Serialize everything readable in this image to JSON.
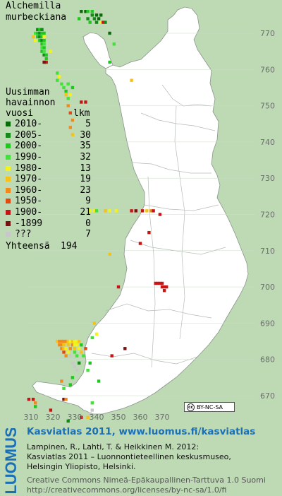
{
  "species": {
    "line1": "Alchemilla",
    "line2": "murbeckiana"
  },
  "legend": {
    "heading": [
      "Uusimman",
      "havainnon",
      "vuosi"
    ],
    "count_heading": "lkm",
    "items": [
      {
        "label": "2010-",
        "count": "5",
        "color": "#0a6b0a"
      },
      {
        "label": "2005-",
        "count": "30",
        "color": "#15881a"
      },
      {
        "label": "2000-",
        "count": "35",
        "color": "#1ec81e"
      },
      {
        "label": "1990-",
        "count": "32",
        "color": "#44e03c"
      },
      {
        "label": "1980-",
        "count": "13",
        "color": "#f2f21c"
      },
      {
        "label": "1970-",
        "count": "19",
        "color": "#f5c21a"
      },
      {
        "label": "1960-",
        "count": "23",
        "color": "#f08a1c"
      },
      {
        "label": "1950-",
        "count": "9",
        "color": "#e24a14"
      },
      {
        "label": "1900-",
        "count": "21",
        "color": "#c81414"
      },
      {
        "label": "-1899",
        "count": "0",
        "color": "#7a1010"
      },
      {
        "label": "???",
        "count": "7",
        "color": "#c8c8c8"
      }
    ],
    "total_label": "Yhteensä",
    "total_count": "194"
  },
  "axes": {
    "y_ticks": [
      "770",
      "760",
      "750",
      "740",
      "730",
      "720",
      "710",
      "700",
      "690",
      "680",
      "670"
    ],
    "x_ticks": [
      "310",
      "320",
      "330",
      "340",
      "350",
      "360",
      "370"
    ]
  },
  "license_badge": {
    "cc": "cc",
    "text": "BY-NC-SA"
  },
  "footer": {
    "logo_text": "LUOMUS",
    "heading": "Kasviatlas 2011, www.luomus.fi/kasviatlas",
    "citation": [
      "Lampinen, R., Lahti, T. & Heikkinen M. 2012:",
      "Kasviatlas 2011 – Luonnontieteellinen keskusmuseo,",
      "Helsingin Yliopisto, Helsinki."
    ],
    "license": [
      "Creative Commons Nimeä-Epäkaupallinen-Tarttuva 1.0 Suomi",
      "http://creativecommons.org/licenses/by-nc-sa/1.0/fi"
    ]
  },
  "colors": {
    "background": "#bedab5",
    "land": "#ffffff",
    "border": "#9aa49a",
    "logo": "#1a6fb5"
  },
  "map_data": {
    "grid_unit_km": 10,
    "points": [
      [
        333,
        776,
        "c0"
      ],
      [
        335,
        776,
        "c0"
      ],
      [
        340,
        775,
        "c0"
      ],
      [
        341,
        774,
        "c0"
      ],
      [
        342,
        775,
        "c0"
      ],
      [
        332,
        774,
        "c2"
      ],
      [
        336,
        776,
        "c2"
      ],
      [
        338,
        776,
        "c2"
      ],
      [
        338,
        775,
        "c1"
      ],
      [
        336,
        774,
        "c1"
      ],
      [
        339,
        774,
        "c1"
      ],
      [
        340,
        773,
        "c1"
      ],
      [
        337,
        773,
        "c2"
      ],
      [
        342,
        773,
        "c4"
      ],
      [
        343,
        773,
        "c8"
      ],
      [
        344,
        773,
        "c1"
      ],
      [
        313,
        771,
        "c1"
      ],
      [
        314,
        771,
        "c2"
      ],
      [
        315,
        771,
        "c1"
      ],
      [
        312,
        770,
        "c3"
      ],
      [
        313,
        770,
        "c2"
      ],
      [
        314,
        770,
        "c1"
      ],
      [
        315,
        770,
        "c2"
      ],
      [
        316,
        770,
        "c2"
      ],
      [
        313,
        769,
        "c2"
      ],
      [
        314,
        769,
        "c1"
      ],
      [
        315,
        769,
        "c2"
      ],
      [
        316,
        769,
        "c4"
      ],
      [
        314,
        768,
        "c2"
      ],
      [
        315,
        768,
        "c1"
      ],
      [
        316,
        768,
        "c2"
      ],
      [
        315,
        767,
        "c2"
      ],
      [
        316,
        767,
        "c3"
      ],
      [
        315,
        766,
        "c3"
      ],
      [
        316,
        766,
        "c2"
      ],
      [
        315,
        765,
        "c2"
      ],
      [
        316,
        765,
        "c3"
      ],
      [
        316,
        764,
        "c1"
      ],
      [
        317,
        764,
        "c2"
      ],
      [
        317,
        763,
        "c2"
      ],
      [
        317,
        762,
        "c8"
      ],
      [
        316,
        762,
        "c9"
      ],
      [
        311,
        769,
        "c5"
      ],
      [
        312,
        768,
        "c4"
      ],
      [
        346,
        770,
        "c0"
      ],
      [
        346,
        762,
        "c2"
      ],
      [
        348,
        767,
        "c3"
      ],
      [
        319,
        765,
        "c4"
      ],
      [
        322,
        759,
        "c3"
      ],
      [
        323,
        758,
        "c4"
      ],
      [
        322,
        757,
        "c3"
      ],
      [
        324,
        756,
        "c3"
      ],
      [
        325,
        755,
        "c3"
      ],
      [
        326,
        754,
        "c2"
      ],
      [
        326,
        753,
        "c5"
      ],
      [
        327,
        752,
        "c3"
      ],
      [
        327,
        750,
        "c6"
      ],
      [
        328,
        748,
        "c7"
      ],
      [
        329,
        746,
        "c6"
      ],
      [
        328,
        744,
        "c6"
      ],
      [
        329,
        742,
        "c5"
      ],
      [
        328,
        753,
        "c4"
      ],
      [
        333,
        751,
        "c8"
      ],
      [
        335,
        751,
        "c8"
      ],
      [
        327,
        756,
        "c3"
      ],
      [
        329,
        755,
        "c2"
      ],
      [
        356,
        757,
        "c5"
      ],
      [
        337,
        721,
        "c4"
      ],
      [
        339,
        721,
        "c4"
      ],
      [
        340,
        721,
        "c3"
      ],
      [
        344,
        721,
        "c5"
      ],
      [
        346,
        721,
        "c4"
      ],
      [
        349,
        721,
        "c4"
      ],
      [
        356,
        721,
        "c8"
      ],
      [
        358,
        721,
        "c9"
      ],
      [
        361,
        721,
        "c8"
      ],
      [
        363,
        721,
        "c5"
      ],
      [
        365,
        721,
        "c6"
      ],
      [
        366,
        721,
        "c8"
      ],
      [
        369,
        720,
        "c8"
      ],
      [
        364,
        715,
        "c8"
      ],
      [
        360,
        712,
        "c8"
      ],
      [
        346,
        709,
        "c5"
      ],
      [
        350,
        700,
        "c8"
      ],
      [
        367,
        701,
        "c8"
      ],
      [
        368,
        701,
        "c8"
      ],
      [
        369,
        701,
        "c8"
      ],
      [
        370,
        701,
        "c8"
      ],
      [
        370,
        700,
        "c8"
      ],
      [
        371,
        700,
        "c8"
      ],
      [
        372,
        700,
        "c8"
      ],
      [
        371,
        699,
        "c8"
      ],
      [
        339,
        690,
        "c5"
      ],
      [
        322,
        685,
        "c5"
      ],
      [
        323,
        685,
        "c6"
      ],
      [
        324,
        685,
        "c6"
      ],
      [
        325,
        685,
        "c6"
      ],
      [
        326,
        685,
        "c6"
      ],
      [
        327,
        685,
        "c5"
      ],
      [
        328,
        685,
        "c4"
      ],
      [
        329,
        685,
        "c5"
      ],
      [
        330,
        685,
        "c4"
      ],
      [
        331,
        685,
        "c4"
      ],
      [
        332,
        685,
        "c5"
      ],
      [
        323,
        684,
        "c6"
      ],
      [
        324,
        684,
        "c6"
      ],
      [
        325,
        684,
        "c5"
      ],
      [
        327,
        684,
        "c5"
      ],
      [
        329,
        684,
        "c6"
      ],
      [
        330,
        684,
        "c4"
      ],
      [
        331,
        684,
        "c4"
      ],
      [
        333,
        684,
        "c2"
      ],
      [
        324,
        683,
        "c6"
      ],
      [
        325,
        683,
        "c5"
      ],
      [
        326,
        683,
        "c4"
      ],
      [
        328,
        683,
        "c6"
      ],
      [
        330,
        683,
        "c5"
      ],
      [
        332,
        683,
        "c4"
      ],
      [
        325,
        682,
        "c7"
      ],
      [
        327,
        682,
        "c4"
      ],
      [
        330,
        682,
        "c3"
      ],
      [
        333,
        682,
        "c5"
      ],
      [
        326,
        681,
        "c6"
      ],
      [
        328,
        681,
        "c10"
      ],
      [
        331,
        681,
        "c3"
      ],
      [
        334,
        681,
        "c3"
      ],
      [
        335,
        683,
        "c7"
      ],
      [
        340,
        687,
        "c4"
      ],
      [
        338,
        686,
        "c3"
      ],
      [
        329,
        679,
        "c10"
      ],
      [
        330,
        678,
        "c10"
      ],
      [
        331,
        677,
        "c10"
      ],
      [
        332,
        679,
        "c1"
      ],
      [
        337,
        679,
        "c2"
      ],
      [
        336,
        677,
        "c3"
      ],
      [
        329,
        675,
        "c2"
      ],
      [
        324,
        674,
        "c6"
      ],
      [
        325,
        672,
        "c3"
      ],
      [
        328,
        673,
        "c2"
      ],
      [
        341,
        674,
        "c2"
      ],
      [
        347,
        681,
        "c8"
      ],
      [
        353,
        683,
        "c9"
      ],
      [
        338,
        668,
        "c3"
      ],
      [
        338,
        666,
        "c10"
      ],
      [
        337,
        665,
        "c10"
      ],
      [
        309,
        669,
        "c8"
      ],
      [
        311,
        669,
        "c8"
      ],
      [
        312,
        668,
        "c6"
      ],
      [
        312,
        667,
        "c2"
      ],
      [
        319,
        666,
        "c8"
      ],
      [
        325,
        669,
        "c9"
      ],
      [
        326,
        669,
        "c6"
      ],
      [
        327,
        663,
        "c1"
      ],
      [
        333,
        664,
        "c8"
      ],
      [
        336,
        664,
        "c5"
      ]
    ]
  }
}
